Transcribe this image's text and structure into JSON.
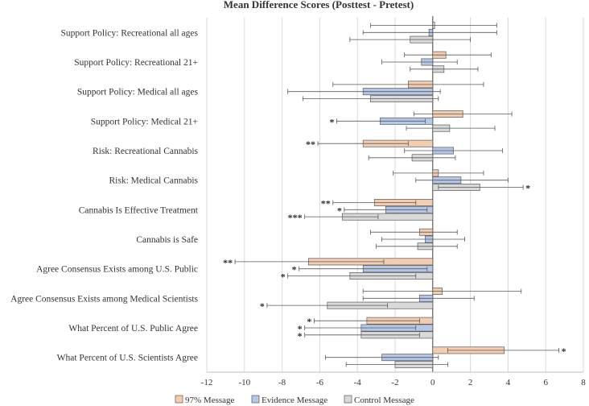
{
  "chart_data": {
    "type": "bar",
    "orientation": "horizontal",
    "title": "Mean Difference Scores (Posttest - Pretest)",
    "xlim": [
      -12,
      8
    ],
    "xticks": [
      -12,
      -10,
      -8,
      -6,
      -4,
      -2,
      0,
      2,
      4,
      6,
      8
    ],
    "grid": true,
    "legend_position": "bottom",
    "categories": [
      "Support Policy: Recreational all ages",
      "Support Policy: Recreational 21+",
      "Support Policy: Medical all ages",
      "Support Policy: Medical 21+",
      "Risk: Recreational Cannabis",
      "Risk: Medical Cannabis",
      "Cannabis Is Effective Treatment",
      "Cannabis is Safe",
      "Agree Consensus Exists among U.S. Public",
      "Agree Consensus Exists among Medical Scientists",
      "What Percent of U.S. Public Agree",
      "What Percent of U.S. Scientists Agree"
    ],
    "series": [
      {
        "name": "97% Message",
        "color": "#f4ccb0",
        "values": [
          0.1,
          0.7,
          -1.3,
          1.6,
          -3.7,
          0.3,
          -3.1,
          -0.7,
          -6.6,
          0.5,
          -3.5,
          3.8
        ],
        "err_low": [
          -3.3,
          -1.5,
          -5.3,
          -1.0,
          -6.1,
          -2.1,
          -5.3,
          -3.3,
          -10.5,
          -3.7,
          -6.3,
          0.8
        ],
        "err_high": [
          3.4,
          3.1,
          2.7,
          4.2,
          -1.3,
          2.7,
          -0.9,
          1.3,
          -2.6,
          4.7,
          -0.7,
          6.7
        ],
        "significance": [
          "",
          "",
          "",
          "",
          "**",
          "",
          "**",
          "",
          "**",
          "",
          "*",
          "*"
        ]
      },
      {
        "name": "Evidence Message",
        "color": "#b4c7e7",
        "values": [
          -0.2,
          -0.6,
          -3.7,
          -2.8,
          1.1,
          1.5,
          -2.5,
          -0.4,
          -3.7,
          -0.7,
          -3.8,
          -2.7
        ],
        "err_low": [
          -3.7,
          -2.7,
          -7.7,
          -5.1,
          -1.5,
          -0.9,
          -4.7,
          -2.7,
          -7.1,
          -3.7,
          -6.8,
          -5.7
        ],
        "err_high": [
          3.4,
          1.3,
          0.4,
          -0.4,
          3.7,
          4.0,
          -0.3,
          1.7,
          -0.3,
          2.2,
          -0.9,
          0.3
        ],
        "significance": [
          "",
          "",
          "",
          "*",
          "",
          "",
          "*",
          "",
          "*",
          "",
          "*",
          ""
        ]
      },
      {
        "name": "Control Message",
        "color": "#d9d9d9",
        "values": [
          -1.2,
          0.6,
          -3.3,
          0.9,
          -1.1,
          2.5,
          -4.8,
          -0.8,
          -4.4,
          -5.6,
          -3.8,
          -2.0
        ],
        "err_low": [
          -4.4,
          -1.2,
          -6.9,
          -1.4,
          -3.4,
          0.3,
          -6.8,
          -3.0,
          -7.7,
          -8.8,
          -6.8,
          -4.6
        ],
        "err_high": [
          2.0,
          2.4,
          0.3,
          3.3,
          1.2,
          4.8,
          -2.9,
          1.3,
          -0.9,
          -2.4,
          -0.7,
          0.8
        ],
        "significance": [
          "",
          "",
          "",
          "",
          "",
          "*",
          "***",
          "",
          "*",
          "*",
          "*",
          ""
        ]
      }
    ]
  }
}
